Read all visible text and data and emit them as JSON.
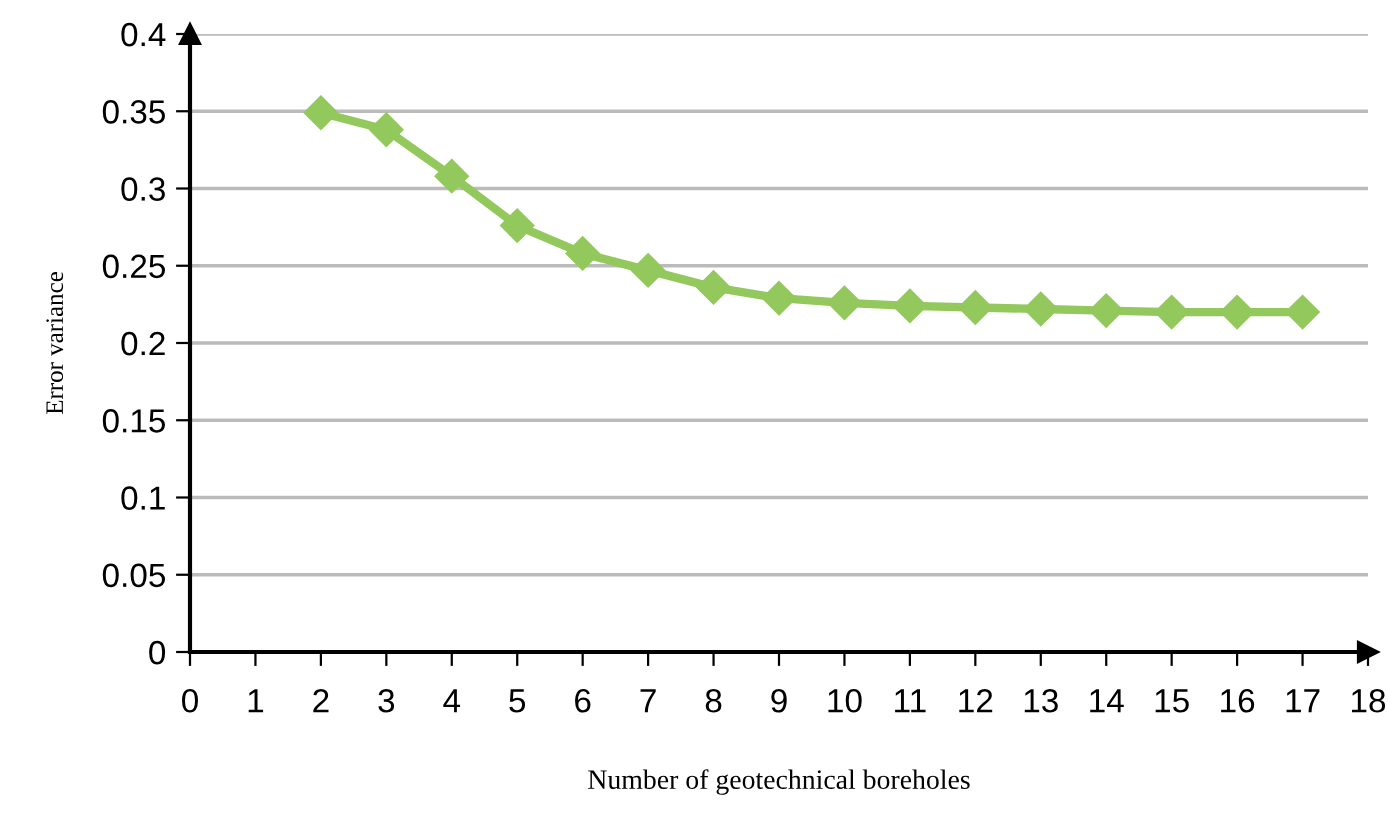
{
  "chart_data": {
    "type": "line",
    "xlabel": "Number of geotechnical boreholes",
    "ylabel": "Error variance",
    "x": [
      2,
      3,
      4,
      5,
      6,
      7,
      8,
      9,
      10,
      11,
      12,
      13,
      14,
      15,
      16,
      17
    ],
    "series": [
      {
        "color": "#92c85c",
        "values": [
          0.349,
          0.338,
          0.308,
          0.276,
          0.258,
          0.247,
          0.236,
          0.229,
          0.226,
          0.224,
          0.223,
          0.222,
          0.221,
          0.22,
          0.22,
          0.22
        ]
      }
    ],
    "xlim": [
      0,
      18
    ],
    "xticks": [
      0,
      1,
      2,
      3,
      4,
      5,
      6,
      7,
      8,
      9,
      10,
      11,
      12,
      13,
      14,
      15,
      16,
      17,
      18
    ],
    "ylim": [
      0,
      0.4
    ],
    "yticks": [
      {
        "value": 0,
        "label": "0"
      },
      {
        "value": 0.05,
        "label": "0.05"
      },
      {
        "value": 0.1,
        "label": "0.1"
      },
      {
        "value": 0.15,
        "label": "0.15"
      },
      {
        "value": 0.2,
        "label": "0.2"
      },
      {
        "value": 0.25,
        "label": "0.25"
      },
      {
        "value": 0.3,
        "label": "0.3"
      },
      {
        "value": 0.35,
        "label": "0.35"
      },
      {
        "value": 0.4,
        "label": "0.4"
      }
    ],
    "grid": "y",
    "marker": "diamond",
    "line_style": "solid"
  }
}
